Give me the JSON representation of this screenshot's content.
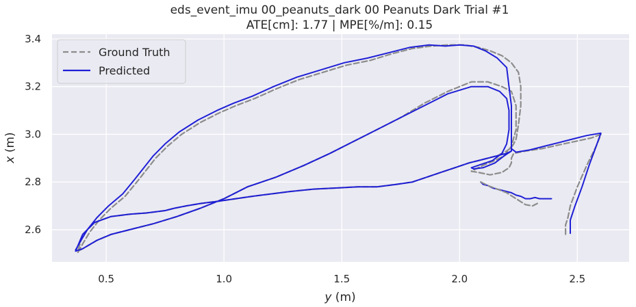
{
  "chart_data": {
    "type": "line",
    "title": "eds_event_imu 00_peanuts_dark 00 Peanuts Dark Trial #1",
    "subtitle": "ATE[cm]: 1.77 | MPE[%/m]: 0.15",
    "xlabel_var": "y",
    "xlabel_unit": " (m)",
    "ylabel_var": "x",
    "ylabel_unit": " (m)",
    "xlim": [
      0.27,
      2.72
    ],
    "ylim": [
      2.465,
      3.42
    ],
    "xticks": [
      0.5,
      1.0,
      1.5,
      2.0,
      2.5
    ],
    "xtick_labels": [
      "0.5",
      "1.0",
      "1.5",
      "2.0",
      "2.5"
    ],
    "yticks": [
      2.6,
      2.8,
      3.0,
      3.2,
      3.4
    ],
    "ytick_labels": [
      "2.6",
      "2.8",
      "3.0",
      "3.2",
      "3.4"
    ],
    "grid": true,
    "legend_position": "top-left",
    "colors": {
      "background": "#eaeaf2",
      "grid": "#ffffff",
      "ground_truth": "#8c8c8c",
      "predicted": "#1f1fd6"
    },
    "series": [
      {
        "name": "Ground Truth",
        "style": "dashed",
        "x": [
          0.38,
          0.4,
          0.43,
          0.47,
          0.52,
          0.58,
          0.63,
          0.67,
          0.71,
          0.76,
          0.82,
          0.9,
          0.98,
          1.05,
          1.13,
          1.22,
          1.32,
          1.42,
          1.52,
          1.62,
          1.72,
          1.8,
          1.88,
          1.95,
          2.02,
          2.08,
          2.13,
          2.18,
          2.22,
          2.25,
          2.26,
          2.26,
          2.25,
          2.24,
          2.23,
          2.22,
          2.2,
          2.16,
          2.1,
          2.04,
          1.98,
          1.92,
          1.86,
          1.8,
          1.73,
          1.65,
          1.57,
          1.48,
          1.38,
          1.28,
          1.2,
          1.12,
          1.05,
          0.98,
          0.9,
          0.84,
          0.79,
          0.75,
          0.71,
          0.67,
          0.6,
          0.52,
          0.45,
          0.4,
          0.38,
          0.4,
          0.46,
          0.52,
          0.6,
          0.7,
          0.8,
          0.9,
          1.0,
          1.1,
          1.22,
          1.34,
          1.45,
          1.55,
          1.65,
          1.75,
          1.85,
          1.95,
          2.05,
          2.12,
          2.18,
          2.22,
          2.24,
          2.24,
          2.22,
          2.19,
          2.15,
          2.1,
          2.07,
          2.05,
          2.08,
          2.13,
          2.18,
          2.21,
          2.22,
          2.22,
          2.23,
          2.28,
          2.35,
          2.42,
          2.49,
          2.56,
          2.6,
          2.58,
          2.54,
          2.5,
          2.47,
          2.46,
          2.45,
          2.45,
          2.45
        ],
        "y": [
          2.505,
          2.54,
          2.59,
          2.64,
          2.69,
          2.74,
          2.8,
          2.85,
          2.9,
          2.95,
          3.0,
          3.05,
          3.09,
          3.12,
          3.15,
          3.19,
          3.23,
          3.26,
          3.29,
          3.31,
          3.34,
          3.36,
          3.37,
          3.375,
          3.375,
          3.365,
          3.35,
          3.33,
          3.3,
          3.26,
          3.2,
          3.12,
          3.04,
          2.98,
          2.96,
          2.945,
          2.93,
          2.91,
          2.895,
          2.88,
          2.86,
          2.84,
          2.82,
          2.8,
          2.79,
          2.78,
          2.78,
          2.775,
          2.77,
          2.76,
          2.75,
          2.74,
          2.73,
          2.72,
          2.71,
          2.7,
          2.69,
          2.68,
          2.675,
          2.67,
          2.665,
          2.655,
          2.63,
          2.58,
          2.51,
          2.52,
          2.555,
          2.58,
          2.6,
          2.625,
          2.655,
          2.69,
          2.73,
          2.78,
          2.82,
          2.87,
          2.92,
          2.97,
          3.02,
          3.07,
          3.13,
          3.18,
          3.22,
          3.22,
          3.2,
          3.18,
          3.12,
          3.02,
          2.95,
          2.91,
          2.89,
          2.87,
          2.855,
          2.845,
          2.84,
          2.83,
          2.84,
          2.86,
          2.88,
          2.9,
          2.92,
          2.93,
          2.94,
          2.955,
          2.97,
          2.985,
          3.0,
          2.95,
          2.87,
          2.78,
          2.7,
          2.65,
          2.62,
          2.6,
          2.575
        ]
      },
      {
        "name": "Predicted",
        "style": "solid",
        "x": [
          0.37,
          0.39,
          0.42,
          0.46,
          0.51,
          0.57,
          0.62,
          0.66,
          0.7,
          0.75,
          0.81,
          0.89,
          0.97,
          1.04,
          1.12,
          1.21,
          1.31,
          1.41,
          1.51,
          1.61,
          1.71,
          1.79,
          1.87,
          1.94,
          2.0,
          2.06,
          2.11,
          2.16,
          2.2,
          2.21,
          2.22,
          2.22,
          2.22,
          2.22,
          2.22,
          2.22,
          2.2,
          2.16,
          2.1,
          2.04,
          1.98,
          1.92,
          1.86,
          1.8,
          1.73,
          1.65,
          1.57,
          1.48,
          1.38,
          1.28,
          1.2,
          1.12,
          1.05,
          0.98,
          0.9,
          0.84,
          0.79,
          0.75,
          0.71,
          0.67,
          0.6,
          0.52,
          0.45,
          0.4,
          0.37,
          0.4,
          0.46,
          0.52,
          0.6,
          0.7,
          0.8,
          0.9,
          1.0,
          1.1,
          1.22,
          1.34,
          1.45,
          1.55,
          1.65,
          1.75,
          1.85,
          1.95,
          2.05,
          2.12,
          2.17,
          2.2,
          2.21,
          2.21,
          2.2,
          2.18,
          2.14,
          2.08,
          2.05,
          2.06,
          2.1,
          2.15,
          2.19,
          2.22,
          2.22,
          2.22,
          2.24,
          2.3,
          2.36,
          2.42,
          2.48,
          2.54,
          2.6,
          2.58,
          2.55,
          2.52,
          2.49,
          2.47,
          2.47,
          2.47
        ],
        "y": [
          2.515,
          2.55,
          2.6,
          2.65,
          2.7,
          2.75,
          2.81,
          2.86,
          2.91,
          2.96,
          3.01,
          3.06,
          3.1,
          3.13,
          3.16,
          3.2,
          3.24,
          3.27,
          3.3,
          3.32,
          3.345,
          3.365,
          3.375,
          3.37,
          3.375,
          3.37,
          3.35,
          3.32,
          3.28,
          3.2,
          3.12,
          3.04,
          2.97,
          2.94,
          2.93,
          2.93,
          2.92,
          2.91,
          2.895,
          2.88,
          2.86,
          2.84,
          2.82,
          2.8,
          2.79,
          2.78,
          2.78,
          2.775,
          2.77,
          2.76,
          2.75,
          2.74,
          2.73,
          2.72,
          2.71,
          2.7,
          2.69,
          2.68,
          2.675,
          2.67,
          2.665,
          2.655,
          2.63,
          2.58,
          2.51,
          2.52,
          2.555,
          2.58,
          2.6,
          2.625,
          2.655,
          2.69,
          2.73,
          2.78,
          2.82,
          2.87,
          2.92,
          2.97,
          3.02,
          3.07,
          3.12,
          3.17,
          3.2,
          3.2,
          3.18,
          3.15,
          3.1,
          3.02,
          2.96,
          2.92,
          2.89,
          2.87,
          2.86,
          2.855,
          2.86,
          2.88,
          2.91,
          2.93,
          2.95,
          2.94,
          2.925,
          2.935,
          2.95,
          2.965,
          2.98,
          2.995,
          3.005,
          2.95,
          2.87,
          2.78,
          2.7,
          2.64,
          2.62,
          2.585
        ]
      },
      {
        "name": "Predicted",
        "style": "solid",
        "x": [
          2.09,
          2.1,
          2.12,
          2.14,
          2.16,
          2.18,
          2.2,
          2.22,
          2.24,
          2.26,
          2.28,
          2.3,
          2.32,
          2.34,
          2.36,
          2.38,
          2.39
        ],
        "y": [
          2.8,
          2.79,
          2.785,
          2.775,
          2.77,
          2.765,
          2.76,
          2.755,
          2.745,
          2.74,
          2.73,
          2.73,
          2.735,
          2.73,
          2.73,
          2.73,
          2.73
        ]
      },
      {
        "name": "Ground Truth",
        "style": "dashed",
        "x": [
          2.09,
          2.12,
          2.16,
          2.2,
          2.24,
          2.28,
          2.31,
          2.33
        ],
        "y": [
          2.8,
          2.785,
          2.77,
          2.755,
          2.73,
          2.705,
          2.7,
          2.71
        ]
      }
    ]
  },
  "legend": {
    "items": [
      {
        "label": "Ground Truth",
        "style": "dashed",
        "color": "#8c8c8c"
      },
      {
        "label": "Predicted",
        "style": "solid",
        "color": "#1f1fd6"
      }
    ]
  }
}
